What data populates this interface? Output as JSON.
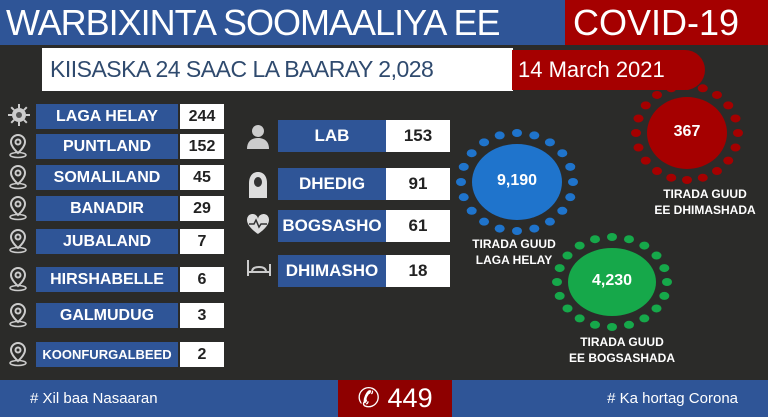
{
  "header": {
    "title": "WARBIXINTA SOOMAALIYA EE",
    "covid": "COVID-19"
  },
  "subheader": {
    "text": "KIISASKA 24 SAAC LA BAARAY 2,028",
    "date": "14 March 2021"
  },
  "regions": [
    {
      "label": "LAGA HELAY",
      "value": "244",
      "icon": "virus-icon"
    },
    {
      "label": "PUNTLAND",
      "value": "152",
      "icon": "location-pin-icon"
    },
    {
      "label": "SOMALILAND",
      "value": "45",
      "icon": "location-pin-icon"
    },
    {
      "label": "BANADIR",
      "value": "29",
      "icon": "location-pin-icon"
    },
    {
      "label": "JUBALAND",
      "value": "7",
      "icon": "location-pin-icon"
    },
    {
      "label": "HIRSHABELLE",
      "value": "6",
      "icon": "location-pin-icon"
    },
    {
      "label": "GALMUDUG",
      "value": "3",
      "icon": "location-pin-icon"
    },
    {
      "label": "KOONFURGALBEED",
      "value": "2",
      "icon": "location-pin-icon"
    }
  ],
  "categories": [
    {
      "label": "LAB",
      "value": "153",
      "icon": "male-person-icon"
    },
    {
      "label": "DHEDIG",
      "value": "91",
      "icon": "female-person-icon"
    },
    {
      "label": "BOGSASHO",
      "value": "61",
      "icon": "heart-pulse-icon"
    },
    {
      "label": "DHIMASHO",
      "value": "18",
      "icon": "bed-icon"
    }
  ],
  "totals": {
    "cases": {
      "value": "9,190",
      "caption1": "TIRADA GUUD",
      "caption2": "LAGA HELAY",
      "color": "#1f74cc"
    },
    "deaths": {
      "value": "367",
      "caption1": "TIRADA GUUD",
      "caption2": "EE DHIMASHADA",
      "color": "#a50000"
    },
    "recovered": {
      "value": "4,230",
      "caption1": "TIRADA GUUD",
      "caption2": "EE BOGSASHADA",
      "color": "#16a84a"
    }
  },
  "footer": {
    "left": "# Xil baa Nasaaran",
    "hotline": "449",
    "hotline_icon": "phone-icon",
    "right": "# Ka hortag Corona"
  }
}
